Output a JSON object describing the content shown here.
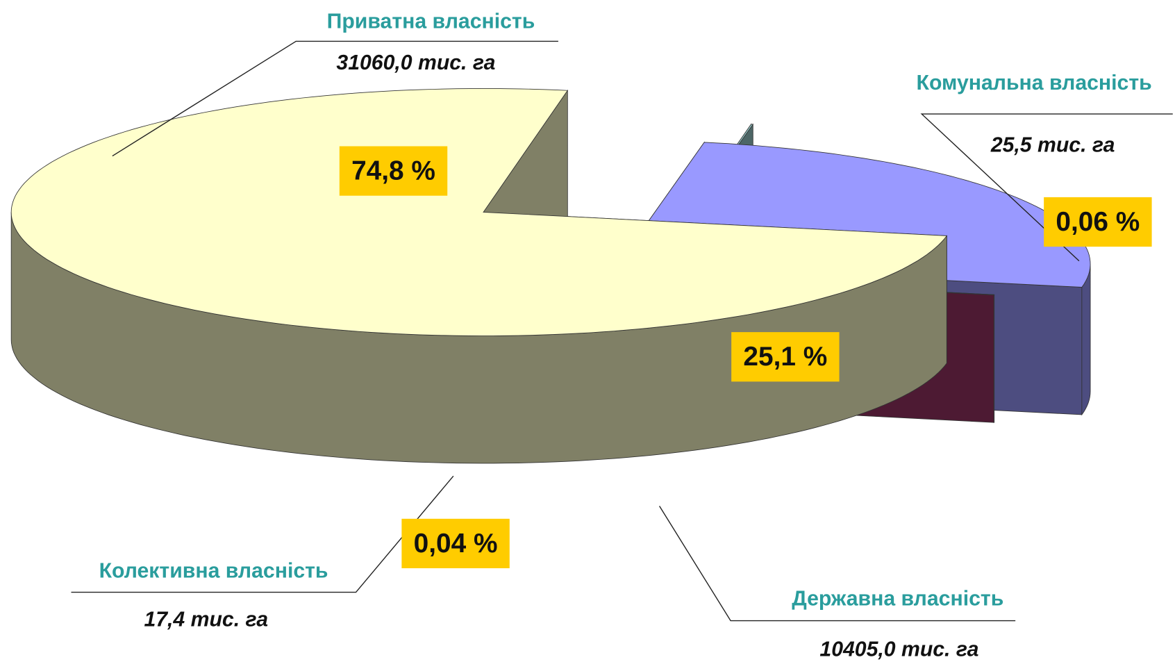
{
  "chart_data": {
    "type": "pie3d",
    "categories": [
      "Приватна власність",
      "Комунальна власність",
      "Державна власність",
      "Колективна власність"
    ],
    "values": [
      74.8,
      0.06,
      25.1,
      0.04
    ],
    "value_labels": [
      "74,8 %",
      "0,06 %",
      "25,1 %",
      "0,04 %"
    ],
    "amount_labels": [
      "31060,0 тис. га",
      "25,5 тис. га",
      "10405,0 тис. га",
      "17,4 тис. га"
    ],
    "colors": [
      "#ffffcc",
      "#99cccc",
      "#9999ff",
      "#993366"
    ]
  }
}
